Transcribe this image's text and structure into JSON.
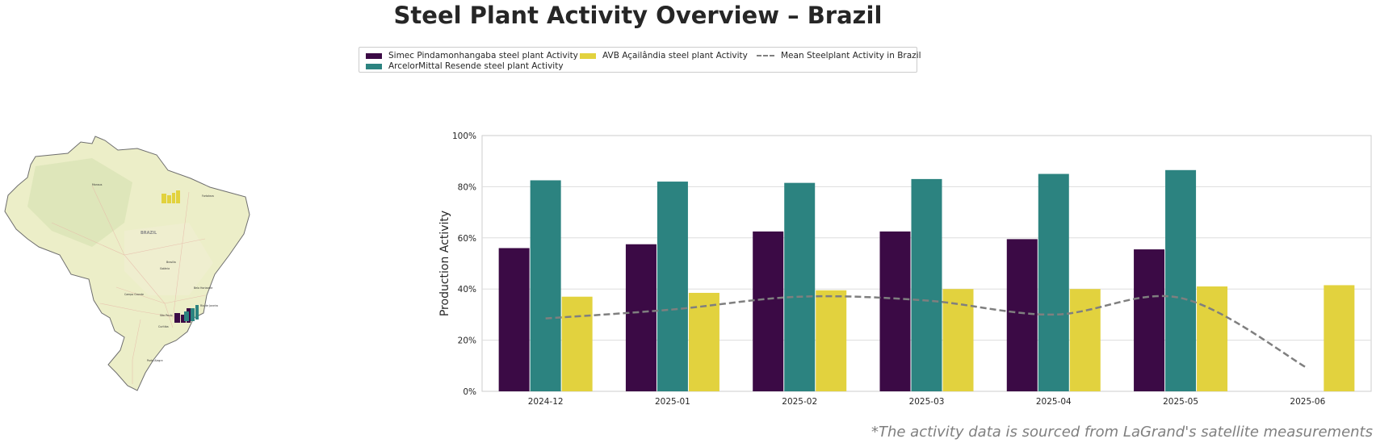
{
  "title": "Steel Plant Activity Overview – Brazil",
  "footnote": "*The activity data is sourced from LaGrand's satellite measurements",
  "legend": [
    {
      "label": "Simec Pindamonhangaba steel plant Activity",
      "color": "#3b0a45",
      "kind": "bar"
    },
    {
      "label": "ArcelorMittal Resende steel plant Activity",
      "color": "#2c8380",
      "kind": "bar"
    },
    {
      "label": "AVB Açailândia steel plant Activity",
      "color": "#e2d23e",
      "kind": "bar"
    },
    {
      "label": "Mean Steelplant Activity in Brazil",
      "color": "#7f7f7f",
      "kind": "dashed-line"
    }
  ],
  "map": {
    "country_label": "BRAZIL",
    "city_labels": [
      "Manaus",
      "Fortaleza",
      "Brasília",
      "Goiânia",
      "Belo Horizonte",
      "Campo Grande",
      "São Paulo",
      "Rio de Janeiro",
      "Curitiba",
      "Porto Alegre"
    ]
  },
  "chart_data": {
    "type": "bar",
    "categories": [
      "2024-12",
      "2025-01",
      "2025-02",
      "2025-03",
      "2025-04",
      "2025-05",
      "2025-06"
    ],
    "series": [
      {
        "name": "Simec Pindamonhangaba steel plant Activity",
        "color": "#3b0a45",
        "values": [
          56,
          57.5,
          62.5,
          62.5,
          59.5,
          55.5,
          null
        ]
      },
      {
        "name": "ArcelorMittal Resende steel plant Activity",
        "color": "#2c8380",
        "values": [
          82.5,
          82,
          81.5,
          83,
          85,
          86.5,
          null
        ]
      },
      {
        "name": "AVB Açailândia steel plant Activity",
        "color": "#e2d23e",
        "values": [
          37,
          38.5,
          39.5,
          40,
          40,
          41,
          41.5
        ]
      }
    ],
    "line": {
      "name": "Mean Steelplant Activity in Brazil",
      "color": "#7f7f7f",
      "style": "dashed",
      "values": [
        28.5,
        32,
        37,
        35.5,
        30,
        36.5,
        9
      ]
    },
    "ylabel": "Production Activity",
    "xlabel": "",
    "ylim": [
      0,
      100
    ],
    "yticks": [
      0,
      20,
      40,
      60,
      80,
      100
    ],
    "ytick_labels": [
      "0%",
      "20%",
      "40%",
      "60%",
      "80%",
      "100%"
    ],
    "grid": "horizontal"
  }
}
